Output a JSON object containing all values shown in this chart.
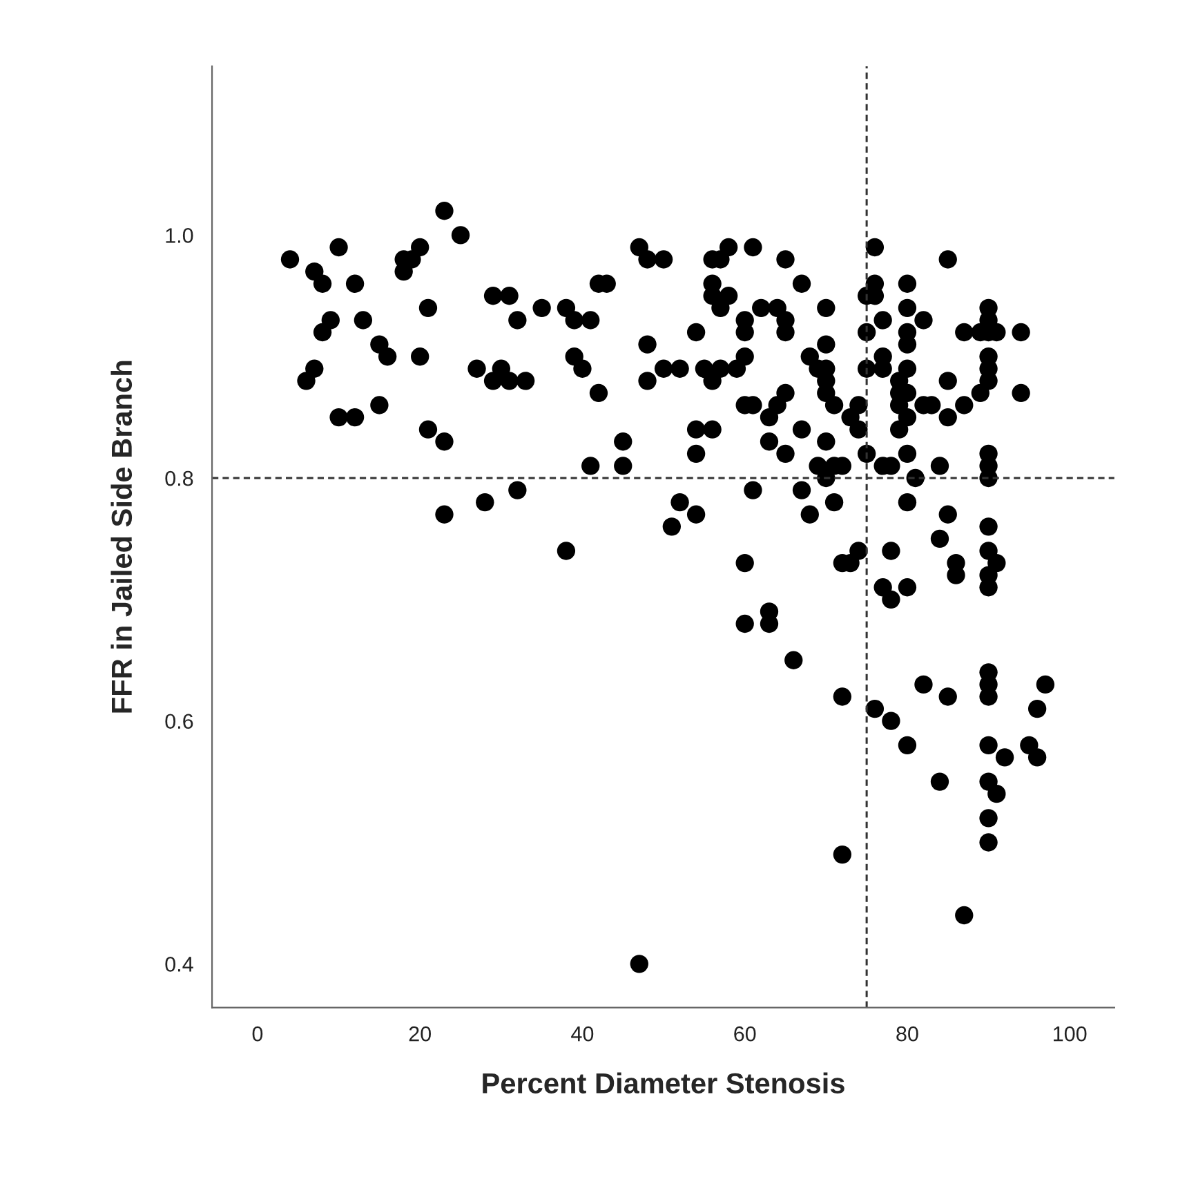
{
  "chart_data": {
    "type": "scatter",
    "xlabel": "Percent Diameter Stenosis",
    "ylabel": "FFR in Jailed Side Branch",
    "xlim": [
      -5.6,
      105.5
    ],
    "ylim": [
      0.364,
      1.139
    ],
    "xticks": [
      0,
      20,
      40,
      60,
      80,
      100
    ],
    "yticks": [
      {
        "value": 0.4,
        "label": "0.4"
      },
      {
        "value": 0.6,
        "label": "0.6"
      },
      {
        "value": 0.8,
        "label": "0.8"
      },
      {
        "value": 1.0,
        "label": "1.0"
      }
    ],
    "grid": false,
    "legend": false,
    "marker": "circle",
    "ref_lines": [
      {
        "axis": "x",
        "value": 75,
        "line_style": "dashed",
        "color": "#333333"
      },
      {
        "axis": "y",
        "value": 0.8,
        "line_style": "dashed",
        "color": "#333333"
      }
    ],
    "series": [
      {
        "color": "#000000",
        "x": [
          4,
          7,
          8,
          10,
          12,
          21,
          9,
          8,
          13,
          15,
          16,
          20,
          7,
          6,
          15,
          10,
          12,
          21,
          23,
          23,
          25,
          18,
          19,
          20,
          18,
          29,
          31,
          32,
          35,
          27,
          30,
          29,
          31,
          33,
          28,
          32,
          23,
          47,
          48,
          50,
          42,
          43,
          38,
          39,
          41,
          39,
          40,
          42,
          41,
          45,
          45,
          38,
          48,
          48,
          54,
          50,
          52,
          55,
          56,
          57,
          59,
          60,
          56,
          57,
          58,
          61,
          65,
          56,
          56,
          58,
          57,
          60,
          60,
          62,
          64,
          65,
          65,
          67,
          70,
          70,
          68,
          69,
          70,
          70,
          70,
          71,
          60,
          61,
          64,
          65,
          63,
          63,
          65,
          67,
          70,
          69,
          70,
          71,
          72,
          73,
          74,
          74,
          54,
          56,
          54,
          61,
          67,
          71,
          68,
          52,
          54,
          51,
          60,
          72,
          73,
          74,
          47,
          76,
          85,
          76,
          75,
          76,
          80,
          80,
          82,
          77,
          75,
          80,
          80,
          90,
          90,
          87,
          89,
          91,
          94,
          90,
          90,
          90,
          90,
          89,
          94,
          85,
          77,
          77,
          75,
          80,
          79,
          80,
          79,
          79,
          80,
          79,
          82,
          83,
          85,
          87,
          75,
          77,
          78,
          80,
          81,
          84,
          90,
          90,
          90,
          80,
          85,
          84,
          90,
          90,
          91,
          86,
          86,
          78,
          90,
          90,
          77,
          78,
          80,
          63,
          63,
          60,
          66,
          72,
          76,
          78,
          80,
          82,
          85,
          90,
          90,
          90,
          97,
          96,
          90,
          92,
          95,
          96,
          84,
          90,
          91,
          90,
          90,
          72,
          87
        ],
        "values": [
          0.98,
          0.97,
          0.96,
          0.99,
          0.96,
          0.94,
          0.93,
          0.92,
          0.93,
          0.91,
          0.9,
          0.9,
          0.89,
          0.88,
          0.86,
          0.85,
          0.85,
          0.84,
          0.83,
          1.02,
          1.0,
          0.98,
          0.98,
          0.99,
          0.97,
          0.95,
          0.95,
          0.93,
          0.94,
          0.89,
          0.89,
          0.88,
          0.88,
          0.88,
          0.78,
          0.79,
          0.77,
          0.99,
          0.98,
          0.98,
          0.96,
          0.96,
          0.94,
          0.93,
          0.93,
          0.9,
          0.89,
          0.87,
          0.81,
          0.83,
          0.81,
          0.74,
          0.91,
          0.88,
          0.92,
          0.89,
          0.89,
          0.89,
          0.88,
          0.89,
          0.89,
          0.9,
          0.98,
          0.98,
          0.99,
          0.99,
          0.98,
          0.96,
          0.95,
          0.95,
          0.94,
          0.93,
          0.92,
          0.94,
          0.94,
          0.93,
          0.92,
          0.96,
          0.94,
          0.91,
          0.9,
          0.89,
          0.89,
          0.88,
          0.87,
          0.86,
          0.86,
          0.86,
          0.86,
          0.87,
          0.85,
          0.83,
          0.82,
          0.84,
          0.83,
          0.81,
          0.8,
          0.81,
          0.81,
          0.85,
          0.86,
          0.84,
          0.84,
          0.84,
          0.82,
          0.79,
          0.79,
          0.78,
          0.77,
          0.78,
          0.77,
          0.76,
          0.73,
          0.73,
          0.73,
          0.74,
          0.4,
          0.99,
          0.98,
          0.96,
          0.95,
          0.95,
          0.96,
          0.94,
          0.93,
          0.93,
          0.92,
          0.92,
          0.91,
          0.94,
          0.93,
          0.92,
          0.92,
          0.92,
          0.92,
          0.92,
          0.9,
          0.89,
          0.88,
          0.87,
          0.87,
          0.88,
          0.9,
          0.89,
          0.89,
          0.89,
          0.88,
          0.87,
          0.87,
          0.86,
          0.85,
          0.84,
          0.86,
          0.86,
          0.85,
          0.86,
          0.82,
          0.81,
          0.81,
          0.82,
          0.8,
          0.81,
          0.82,
          0.81,
          0.8,
          0.78,
          0.77,
          0.75,
          0.76,
          0.74,
          0.73,
          0.73,
          0.72,
          0.74,
          0.72,
          0.71,
          0.71,
          0.7,
          0.71,
          0.69,
          0.68,
          0.68,
          0.65,
          0.62,
          0.61,
          0.6,
          0.58,
          0.63,
          0.62,
          0.64,
          0.63,
          0.62,
          0.63,
          0.61,
          0.58,
          0.57,
          0.58,
          0.57,
          0.55,
          0.55,
          0.54,
          0.52,
          0.5,
          0.49,
          0.44
        ]
      }
    ]
  }
}
